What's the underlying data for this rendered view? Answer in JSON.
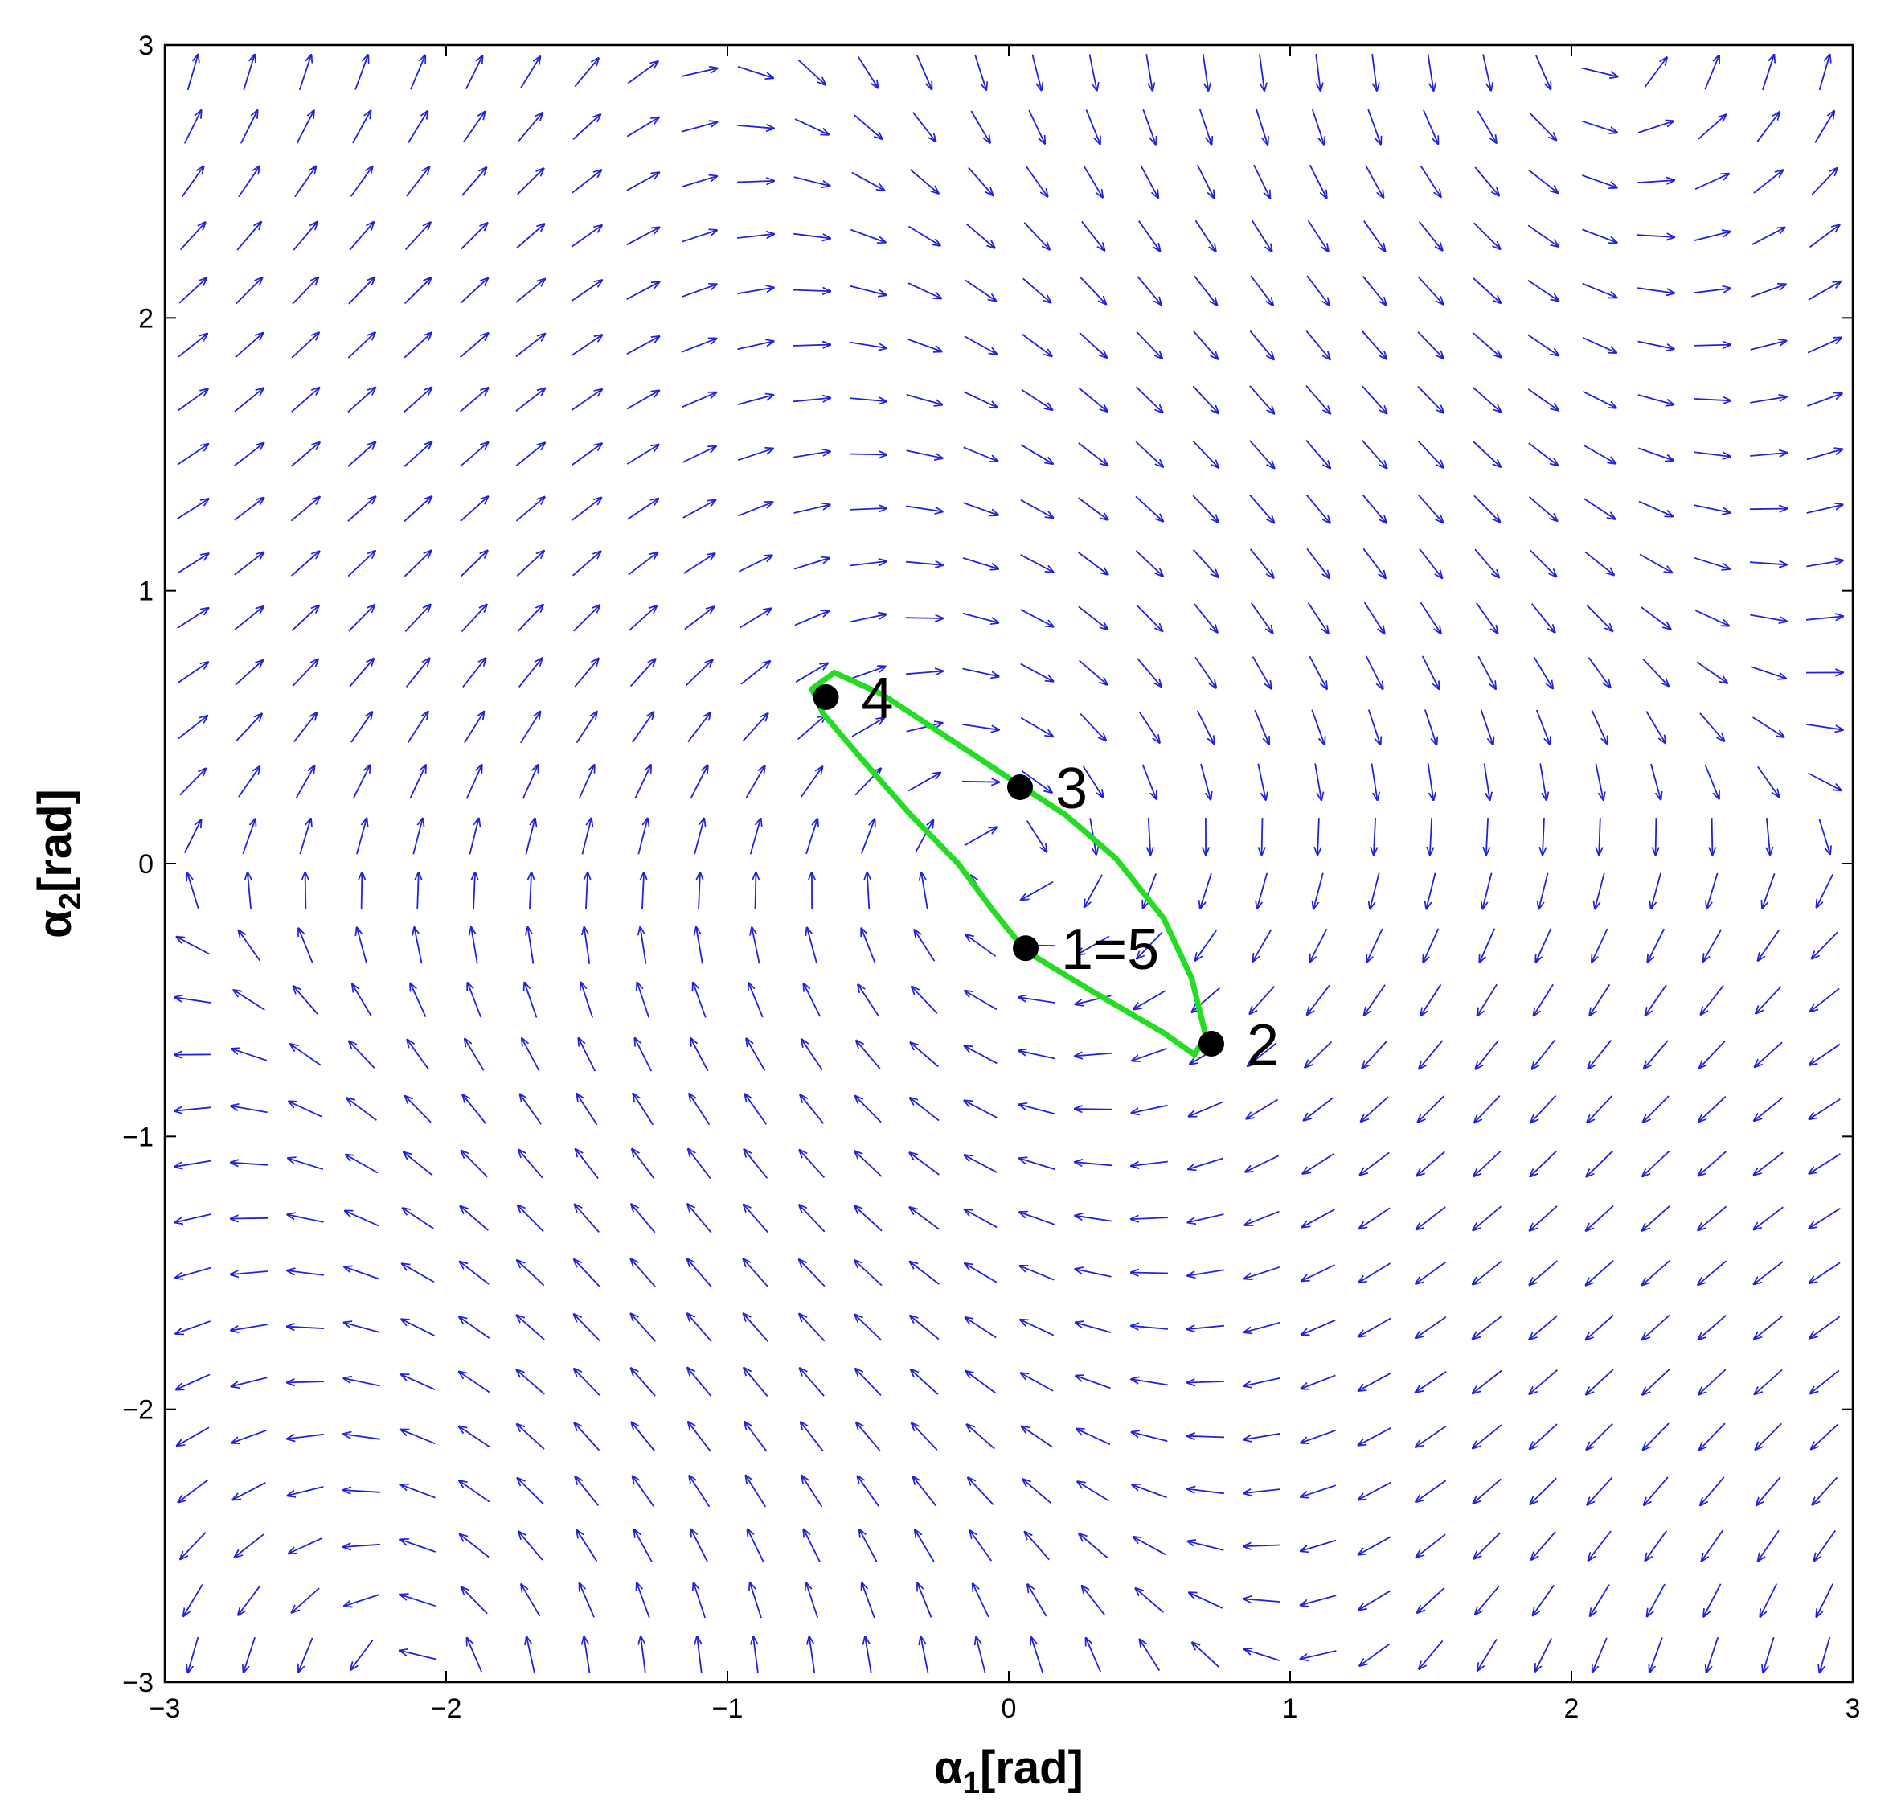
{
  "chart_data": {
    "type": "vector-field",
    "xlabel": {
      "symbol": "α",
      "subscript": "1",
      "unit": "[rad]"
    },
    "ylabel": {
      "symbol": "α",
      "subscript": "2",
      "unit": "[rad]"
    },
    "xlim": [
      -3,
      3
    ],
    "ylim": [
      -3,
      3
    ],
    "xticks": [
      -3,
      -2,
      -1,
      0,
      1,
      2,
      3
    ],
    "yticks": [
      -3,
      -2,
      -1,
      0,
      1,
      2,
      3
    ],
    "xtick_labels": [
      "−3",
      "−2",
      "−1",
      "0",
      "1",
      "2",
      "3"
    ],
    "ytick_labels": [
      "−3",
      "−2",
      "−1",
      "0",
      "1",
      "2",
      "3"
    ],
    "grid": false,
    "field": {
      "grid_min": -2.9,
      "grid_max": 2.9,
      "grid_step": 0.2,
      "color": "#2222dd"
    },
    "trajectory": {
      "color": "#22dd22",
      "points": [
        [
          0.06,
          -0.32
        ],
        [
          0.3,
          -0.47
        ],
        [
          0.55,
          -0.62
        ],
        [
          0.66,
          -0.7
        ],
        [
          0.7,
          -0.63
        ],
        [
          0.65,
          -0.42
        ],
        [
          0.55,
          -0.2
        ],
        [
          0.38,
          0.02
        ],
        [
          0.2,
          0.18
        ],
        [
          0.05,
          0.28
        ],
        [
          -0.2,
          0.45
        ],
        [
          -0.45,
          0.62
        ],
        [
          -0.62,
          0.7
        ],
        [
          -0.7,
          0.64
        ],
        [
          -0.66,
          0.55
        ],
        [
          -0.52,
          0.38
        ],
        [
          -0.35,
          0.18
        ],
        [
          -0.18,
          0.0
        ],
        [
          -0.05,
          -0.18
        ],
        [
          0.06,
          -0.32
        ]
      ]
    },
    "marked_points": [
      {
        "label": "1=5",
        "x": 0.06,
        "y": -0.31
      },
      {
        "label": "2",
        "x": 0.72,
        "y": -0.66
      },
      {
        "label": "3",
        "x": 0.04,
        "y": 0.28
      },
      {
        "label": "4",
        "x": -0.65,
        "y": 0.61
      }
    ]
  }
}
